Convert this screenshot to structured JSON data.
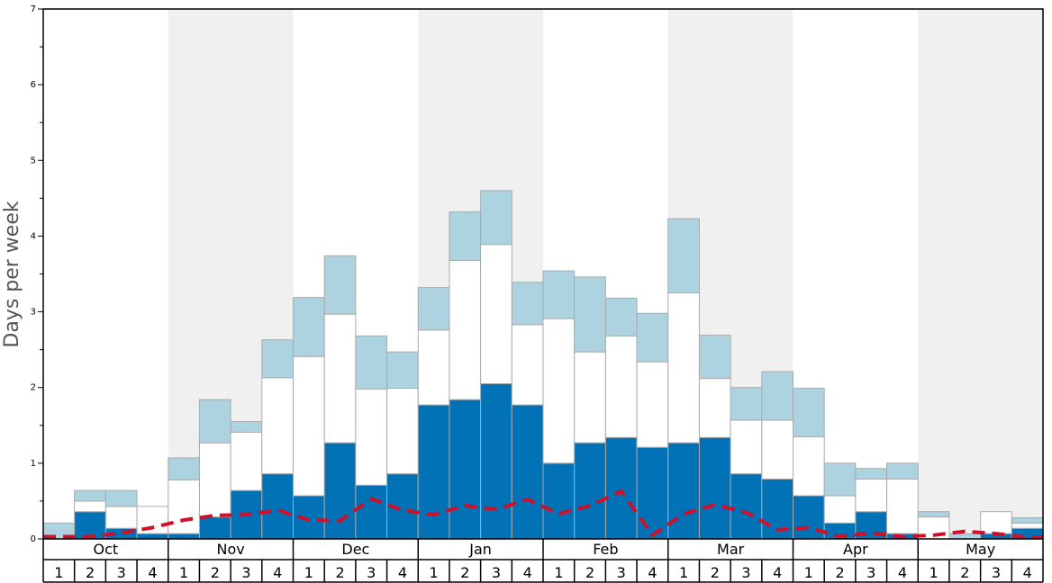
{
  "chart_data": {
    "type": "bar",
    "stacked": true,
    "ylabel": "Days per week",
    "ylim": [
      0,
      7
    ],
    "y_major_ticks": [
      0,
      1,
      2,
      3,
      4,
      5,
      6,
      7
    ],
    "y_tick_labels": [
      "0",
      "1",
      "2",
      "3",
      "4",
      "5",
      "6",
      "7"
    ],
    "months": [
      "Oct",
      "Nov",
      "Dec",
      "Jan",
      "Feb",
      "Mar",
      "Apr",
      "May"
    ],
    "weeks_per_month": 4,
    "week_labels": [
      "1",
      "2",
      "3",
      "4"
    ],
    "shaded_months": [
      "Nov",
      "Jan",
      "Mar",
      "May"
    ],
    "series": [
      {
        "color": "#0072b5",
        "values": [
          0,
          0.36,
          0.14,
          0.07,
          0.07,
          0.29,
          0.64,
          0.86,
          0.57,
          1.27,
          0.71,
          0.86,
          1.77,
          1.84,
          2.05,
          1.77,
          1.0,
          1.27,
          1.34,
          1.21,
          1.27,
          1.34,
          0.86,
          0.79,
          0.57,
          0.21,
          0.36,
          0.07,
          0,
          0,
          0.07,
          0.14
        ]
      },
      {
        "color": "#ffffff",
        "values": [
          0,
          0.14,
          0.29,
          0.36,
          0.71,
          0.98,
          0.77,
          1.27,
          1.84,
          1.7,
          1.27,
          1.13,
          0.99,
          1.84,
          1.84,
          1.06,
          1.91,
          1.2,
          1.34,
          1.13,
          1.98,
          0.78,
          0.71,
          0.78,
          0.78,
          0.36,
          0.43,
          0.72,
          0.29,
          0,
          0.29,
          0.07
        ]
      },
      {
        "color": "#aed3e0",
        "values": [
          0.21,
          0.14,
          0.21,
          0,
          0.29,
          0.57,
          0.14,
          0.5,
          0.78,
          0.77,
          0.7,
          0.48,
          0.56,
          0.64,
          0.71,
          0.56,
          0.63,
          0.99,
          0.5,
          0.64,
          0.98,
          0.57,
          0.43,
          0.64,
          0.64,
          0.43,
          0.14,
          0.21,
          0.07,
          0.07,
          0,
          0.07
        ]
      }
    ],
    "average_line": {
      "color": "#d0102a",
      "style": "dashed",
      "values": [
        0.03,
        0.03,
        0.08,
        0.15,
        0.25,
        0.31,
        0.32,
        0.38,
        0.25,
        0.24,
        0.53,
        0.38,
        0.32,
        0.44,
        0.39,
        0.52,
        0.33,
        0.44,
        0.63,
        0.05,
        0.33,
        0.45,
        0.35,
        0.12,
        0.15,
        0.03,
        0.08,
        0.03,
        0.05,
        0.1,
        0.07,
        0.02
      ]
    },
    "grid": false,
    "legend": "none"
  }
}
